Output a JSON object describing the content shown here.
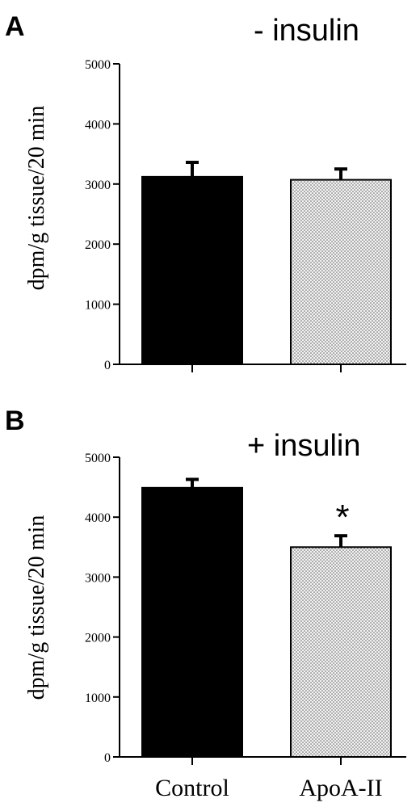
{
  "chart_data": [
    {
      "type": "bar",
      "panel": "A",
      "title": "- insulin",
      "ylabel": "dpm/g tissue/20 min",
      "ylim": [
        0,
        5000
      ],
      "yticks": [
        "0",
        "1000",
        "2000",
        "3000",
        "4000",
        "5000"
      ],
      "categories": [
        "Control",
        "ApoA-II"
      ],
      "values": [
        3120,
        3070
      ],
      "errors": [
        240,
        180
      ],
      "annotations": [
        "",
        ""
      ],
      "fills": [
        "#000000",
        "dotted"
      ]
    },
    {
      "type": "bar",
      "panel": "B",
      "title": "+ insulin",
      "ylabel": "dpm/g tissue/20 min",
      "ylim": [
        0,
        5000
      ],
      "yticks": [
        "0",
        "1000",
        "2000",
        "3000",
        "4000",
        "5000"
      ],
      "categories": [
        "Control",
        "ApoA-II"
      ],
      "values": [
        4490,
        3500
      ],
      "errors": [
        140,
        190
      ],
      "annotations": [
        "",
        "*"
      ],
      "fills": [
        "#000000",
        "dotted"
      ]
    }
  ],
  "x_labels": [
    "Control",
    "ApoA-II"
  ],
  "colors": {
    "bar_control": "#000000",
    "bar_apoa": "#f0f0f0",
    "dots": "#555555"
  }
}
